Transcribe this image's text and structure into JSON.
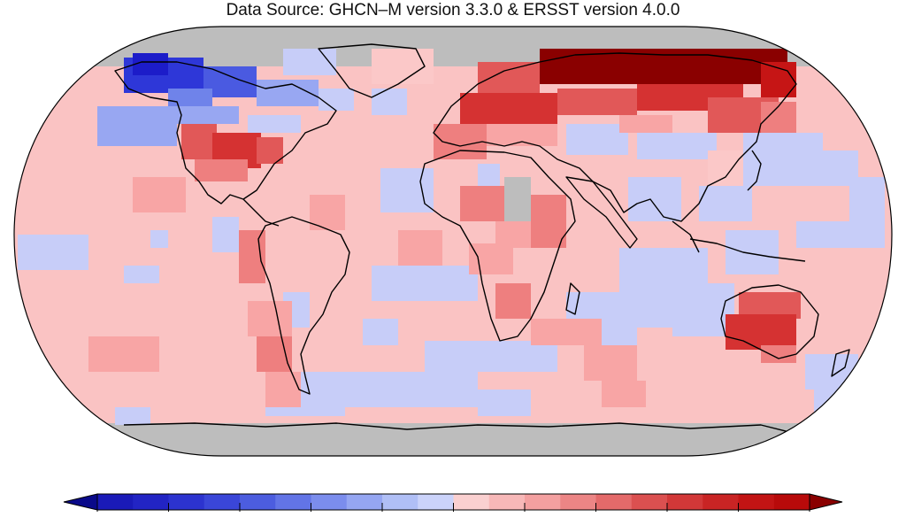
{
  "title": "Data Source: GHCN–M version 3.3.0 & ERSST version 4.0.0",
  "colors": {
    "nodata": "#bdbdbd",
    "coast": "#000000",
    "palette": [
      "#1c1cc9",
      "#2e37d8",
      "#4a5ae1",
      "#6f83ea",
      "#98a7f2",
      "#c7cdf8",
      "#fbc8c8",
      "#f8a5a5",
      "#ee7f7f",
      "#e15858",
      "#d53232",
      "#c61515",
      "#8a0000"
    ]
  }
}
